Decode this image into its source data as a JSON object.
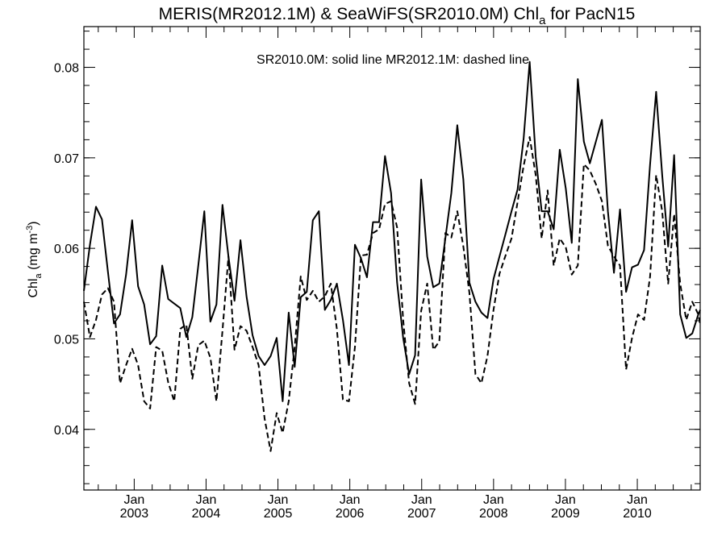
{
  "chart_data": {
    "type": "line",
    "title": {
      "main": "MERIS(MR2012.1M) & SeaWiFS(SR2010.0M)  Chl",
      "sub": "a",
      "suffix": " for PacN15"
    },
    "annotation": "SR2010.0M: solid line   MR2012.1M: dashed line",
    "ylabel": {
      "base": "Chl",
      "sub": "a",
      "mid": " (mg m",
      "sup": "-3",
      "end": ")"
    },
    "xlabel": "",
    "x_unit": "decimal year",
    "xlim": [
      2002.3,
      2010.875
    ],
    "ylim": [
      0.0333,
      0.0845
    ],
    "yticks": [
      0.04,
      0.05,
      0.06,
      0.07,
      0.08
    ],
    "ytick_labels": [
      "0.04",
      "0.05",
      "0.06",
      "0.07",
      "0.08"
    ],
    "xticks": [
      {
        "x": 2003.0,
        "month": "Jan",
        "year": "2003"
      },
      {
        "x": 2004.0,
        "month": "Jan",
        "year": "2004"
      },
      {
        "x": 2005.0,
        "month": "Jan",
        "year": "2005"
      },
      {
        "x": 2006.0,
        "month": "Jan",
        "year": "2006"
      },
      {
        "x": 2007.0,
        "month": "Jan",
        "year": "2007"
      },
      {
        "x": 2008.0,
        "month": "Jan",
        "year": "2008"
      },
      {
        "x": 2009.0,
        "month": "Jan",
        "year": "2009"
      },
      {
        "x": 2010.0,
        "month": "Jan",
        "year": "2010"
      }
    ],
    "x": [
      2002.3,
      2002.384,
      2002.468,
      2002.551,
      2002.635,
      2002.719,
      2002.803,
      2002.887,
      2002.971,
      2003.054,
      2003.138,
      2003.222,
      2003.306,
      2003.39,
      2003.473,
      2003.557,
      2003.641,
      2003.725,
      2003.809,
      2003.892,
      2003.976,
      2004.06,
      2004.144,
      2004.228,
      2004.311,
      2004.395,
      2004.479,
      2004.563,
      2004.647,
      2004.731,
      2004.814,
      2004.898,
      2004.982,
      2005.066,
      2005.15,
      2005.233,
      2005.317,
      2005.401,
      2005.485,
      2005.569,
      2005.652,
      2005.736,
      2005.82,
      2005.904,
      2005.988,
      2006.071,
      2006.155,
      2006.239,
      2006.323,
      2006.407,
      2006.49,
      2006.574,
      2006.658,
      2006.742,
      2006.826,
      2006.909,
      2006.993,
      2007.077,
      2007.161,
      2007.245,
      2007.329,
      2007.412,
      2007.496,
      2007.58,
      2007.664,
      2007.748,
      2007.831,
      2007.915,
      2007.999,
      2008.083,
      2008.167,
      2008.25,
      2008.334,
      2008.418,
      2008.502,
      2008.586,
      2008.669,
      2008.753,
      2008.837,
      2008.921,
      2009.005,
      2009.088,
      2009.172,
      2009.256,
      2009.34,
      2009.424,
      2009.508,
      2009.591,
      2009.675,
      2009.759,
      2009.843,
      2009.927,
      2010.01,
      2010.094,
      2010.178,
      2010.262,
      2010.346,
      2010.429,
      2010.513,
      2010.597,
      2010.681,
      2010.765,
      2010.849,
      2010.875
    ],
    "series": [
      {
        "style": "solid",
        "values": [
          0.0553,
          0.0604,
          0.0646,
          0.0632,
          0.0574,
          0.0517,
          0.0527,
          0.0571,
          0.0631,
          0.0558,
          0.0538,
          0.0494,
          0.0503,
          0.0581,
          0.0544,
          0.0539,
          0.0534,
          0.0502,
          0.0524,
          0.0581,
          0.0641,
          0.0519,
          0.0538,
          0.0648,
          0.0591,
          0.0542,
          0.0609,
          0.0547,
          0.0504,
          0.0481,
          0.0471,
          0.0481,
          0.0501,
          0.0431,
          0.0529,
          0.0469,
          0.0546,
          0.0552,
          0.0631,
          0.0641,
          0.0532,
          0.0543,
          0.0561,
          0.0521,
          0.0471,
          0.0604,
          0.0589,
          0.0568,
          0.0629,
          0.0629,
          0.0702,
          0.0661,
          0.0562,
          0.0501,
          0.0461,
          0.0482,
          0.0676,
          0.0591,
          0.0557,
          0.0561,
          0.0611,
          0.0661,
          0.0736,
          0.0676,
          0.0562,
          0.0541,
          0.0529,
          0.0523,
          0.0566,
          0.0591,
          0.0616,
          0.0641,
          0.0665,
          0.0721,
          0.0806,
          0.0701,
          0.0641,
          0.0641,
          0.0621,
          0.0709,
          0.0666,
          0.0606,
          0.0787,
          0.0718,
          0.0694,
          0.0718,
          0.0742,
          0.0641,
          0.0573,
          0.0643,
          0.0552,
          0.0579,
          0.0582,
          0.0598,
          0.0693,
          0.0773,
          0.0681,
          0.0602,
          0.0703,
          0.0527,
          0.0501,
          0.0506,
          0.0527,
          0.0532
        ]
      },
      {
        "style": "dashed",
        "values": [
          0.0541,
          0.0502,
          0.0521,
          0.0549,
          0.0556,
          0.0541,
          0.0451,
          0.0471,
          0.0489,
          0.0471,
          0.0431,
          0.0423,
          0.0491,
          0.0487,
          0.0452,
          0.0431,
          0.0511,
          0.0516,
          0.0456,
          0.0493,
          0.0498,
          0.0479,
          0.0431,
          0.0509,
          0.0591,
          0.0488,
          0.0514,
          0.0509,
          0.0491,
          0.0471,
          0.0412,
          0.0376,
          0.0418,
          0.0396,
          0.0431,
          0.0491,
          0.0569,
          0.0543,
          0.0553,
          0.0541,
          0.0547,
          0.0561,
          0.0511,
          0.0433,
          0.0431,
          0.0491,
          0.0592,
          0.0593,
          0.0617,
          0.0621,
          0.0649,
          0.0652,
          0.0623,
          0.0521,
          0.0451,
          0.0428,
          0.0531,
          0.0561,
          0.0488,
          0.0497,
          0.0617,
          0.0612,
          0.0641,
          0.0602,
          0.0551,
          0.0461,
          0.0451,
          0.0481,
          0.0532,
          0.0572,
          0.0592,
          0.0611,
          0.0651,
          0.0691,
          0.0723,
          0.0681,
          0.0611,
          0.0664,
          0.0581,
          0.0611,
          0.0601,
          0.0571,
          0.0581,
          0.0693,
          0.0686,
          0.0671,
          0.0652,
          0.0603,
          0.0591,
          0.0581,
          0.0466,
          0.0501,
          0.0527,
          0.0521,
          0.0569,
          0.0681,
          0.0641,
          0.0561,
          0.0638,
          0.0561,
          0.0521,
          0.0541,
          0.0527,
          0.0516
        ]
      }
    ]
  }
}
